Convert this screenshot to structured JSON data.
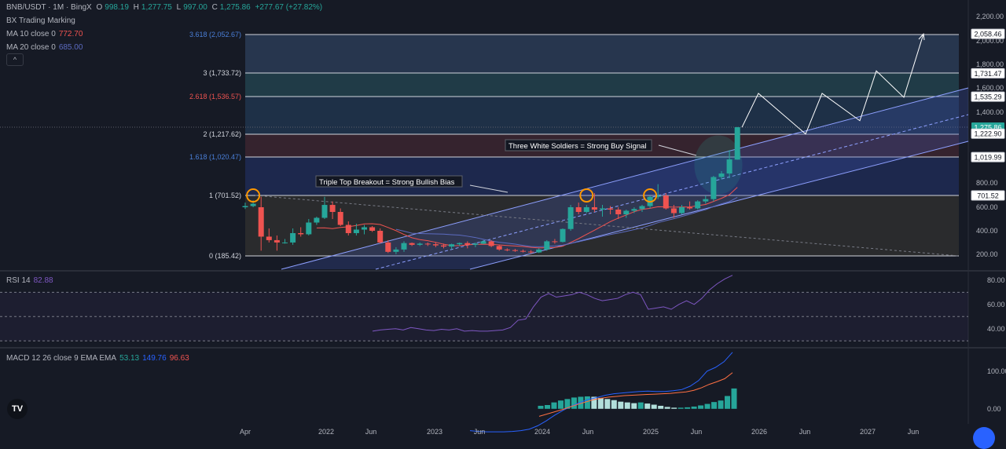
{
  "header": {
    "symbol": "BNB/USDT · 1M · BingX",
    "o_label": "O",
    "o": "998.19",
    "h_label": "H",
    "h": "1,277.75",
    "l_label": "L",
    "l": "997.00",
    "c_label": "C",
    "c": "1,275.86",
    "change": "+277.67 (+27.82%)"
  },
  "indicators": {
    "bx_label": "BX Trading Marking",
    "ma10_label": "MA 10 close 0",
    "ma10_value": "772.70",
    "ma20_label": "MA 20 close 0",
    "ma20_value": "685.00",
    "collapse_glyph": "^",
    "rsi_label": "RSI 14",
    "rsi_value": "82.88",
    "macd_label": "MACD 12 26 close 9 EMA EMA",
    "macd_value": "53.13",
    "macd_signal": "149.76",
    "macd_hist": "96.63"
  },
  "colors": {
    "up": "#26a69a",
    "down": "#ef5350",
    "ma10": "#ef5350",
    "ma20": "#5c6bc0",
    "rsi": "#7e57c2",
    "macd": "#2962ff",
    "signal": "#ff7043",
    "fib_line": "#d1d4dc"
  },
  "chart_data": [
    {
      "type": "candlestick",
      "symbol": "BNB/USDT",
      "interval": "1M",
      "price_axis_ticks": [
        "2,200.00",
        "2,000.00",
        "1,800.00",
        "1,600.00",
        "1,400.00",
        "800.00",
        "600.00",
        "400.00",
        "200.00"
      ],
      "time_axis_ticks": [
        "Apr",
        "2022",
        "Jun",
        "2023",
        "Jun",
        "2024",
        "Jun",
        "2025",
        "Jun",
        "2026",
        "Jun",
        "2027",
        "Jun"
      ],
      "candles": [
        {
          "o": 600,
          "h": 640,
          "l": 585,
          "c": 610
        },
        {
          "o": 610,
          "h": 660,
          "l": 600,
          "c": 630
        },
        {
          "o": 600,
          "h": 690,
          "l": 230,
          "c": 350
        },
        {
          "o": 350,
          "h": 420,
          "l": 300,
          "c": 320
        },
        {
          "o": 320,
          "h": 360,
          "l": 230,
          "c": 300
        },
        {
          "o": 300,
          "h": 330,
          "l": 290,
          "c": 300
        },
        {
          "o": 300,
          "h": 420,
          "l": 280,
          "c": 380
        },
        {
          "o": 380,
          "h": 430,
          "l": 350,
          "c": 370
        },
        {
          "o": 370,
          "h": 500,
          "l": 360,
          "c": 470
        },
        {
          "o": 470,
          "h": 520,
          "l": 450,
          "c": 510
        },
        {
          "o": 510,
          "h": 690,
          "l": 500,
          "c": 620
        },
        {
          "o": 620,
          "h": 650,
          "l": 500,
          "c": 560
        },
        {
          "o": 560,
          "h": 590,
          "l": 440,
          "c": 450
        },
        {
          "o": 450,
          "h": 480,
          "l": 360,
          "c": 380
        },
        {
          "o": 380,
          "h": 460,
          "l": 360,
          "c": 410
        },
        {
          "o": 410,
          "h": 450,
          "l": 370,
          "c": 430
        },
        {
          "o": 430,
          "h": 440,
          "l": 390,
          "c": 400
        },
        {
          "o": 400,
          "h": 420,
          "l": 290,
          "c": 300
        },
        {
          "o": 300,
          "h": 320,
          "l": 210,
          "c": 220
        },
        {
          "o": 220,
          "h": 260,
          "l": 200,
          "c": 240
        },
        {
          "o": 240,
          "h": 310,
          "l": 220,
          "c": 295
        },
        {
          "o": 295,
          "h": 300,
          "l": 270,
          "c": 280
        },
        {
          "o": 280,
          "h": 300,
          "l": 270,
          "c": 290
        },
        {
          "o": 290,
          "h": 300,
          "l": 270,
          "c": 285
        },
        {
          "o": 285,
          "h": 300,
          "l": 260,
          "c": 275
        },
        {
          "o": 275,
          "h": 290,
          "l": 250,
          "c": 265
        },
        {
          "o": 265,
          "h": 290,
          "l": 240,
          "c": 285
        },
        {
          "o": 285,
          "h": 300,
          "l": 270,
          "c": 295
        },
        {
          "o": 295,
          "h": 310,
          "l": 250,
          "c": 280
        },
        {
          "o": 280,
          "h": 300,
          "l": 260,
          "c": 290
        },
        {
          "o": 290,
          "h": 320,
          "l": 285,
          "c": 310
        },
        {
          "o": 310,
          "h": 320,
          "l": 260,
          "c": 270
        },
        {
          "o": 270,
          "h": 280,
          "l": 230,
          "c": 240
        },
        {
          "o": 240,
          "h": 250,
          "l": 225,
          "c": 235
        },
        {
          "o": 235,
          "h": 245,
          "l": 220,
          "c": 228
        },
        {
          "o": 228,
          "h": 240,
          "l": 215,
          "c": 222
        },
        {
          "o": 222,
          "h": 235,
          "l": 205,
          "c": 215
        },
        {
          "o": 215,
          "h": 250,
          "l": 210,
          "c": 240
        },
        {
          "o": 240,
          "h": 320,
          "l": 230,
          "c": 310
        },
        {
          "o": 310,
          "h": 330,
          "l": 290,
          "c": 305
        },
        {
          "o": 305,
          "h": 420,
          "l": 300,
          "c": 415
        },
        {
          "o": 415,
          "h": 620,
          "l": 400,
          "c": 600
        },
        {
          "o": 600,
          "h": 640,
          "l": 540,
          "c": 560
        },
        {
          "o": 560,
          "h": 620,
          "l": 550,
          "c": 600
        },
        {
          "o": 600,
          "h": 720,
          "l": 560,
          "c": 580
        },
        {
          "o": 580,
          "h": 620,
          "l": 520,
          "c": 590
        },
        {
          "o": 590,
          "h": 610,
          "l": 540,
          "c": 580
        },
        {
          "o": 580,
          "h": 600,
          "l": 500,
          "c": 540
        },
        {
          "o": 540,
          "h": 580,
          "l": 510,
          "c": 570
        },
        {
          "o": 570,
          "h": 600,
          "l": 550,
          "c": 585
        },
        {
          "o": 585,
          "h": 620,
          "l": 560,
          "c": 610
        },
        {
          "o": 610,
          "h": 700,
          "l": 590,
          "c": 690
        },
        {
          "o": 690,
          "h": 790,
          "l": 670,
          "c": 700
        },
        {
          "o": 700,
          "h": 720,
          "l": 580,
          "c": 590
        },
        {
          "o": 590,
          "h": 620,
          "l": 510,
          "c": 550
        },
        {
          "o": 550,
          "h": 620,
          "l": 540,
          "c": 600
        },
        {
          "o": 600,
          "h": 650,
          "l": 580,
          "c": 590
        },
        {
          "o": 590,
          "h": 660,
          "l": 580,
          "c": 650
        },
        {
          "o": 650,
          "h": 700,
          "l": 630,
          "c": 670
        },
        {
          "o": 670,
          "h": 860,
          "l": 650,
          "c": 850
        },
        {
          "o": 850,
          "h": 900,
          "l": 830,
          "c": 880
        },
        {
          "o": 880,
          "h": 1080,
          "l": 840,
          "c": 1000
        },
        {
          "o": 998.19,
          "h": 1277.75,
          "l": 997.0,
          "c": 1275.86
        }
      ],
      "fib_levels": [
        {
          "ratio": "0",
          "price": "185.42",
          "label": "0 (185.42)",
          "color": "#d1d4dc"
        },
        {
          "ratio": "1",
          "price": "701.52",
          "label": "1 (701.52)",
          "color": "#d1d4dc"
        },
        {
          "ratio": "1.618",
          "price": "1,020.47",
          "label": "1.618 (1,020.47)",
          "color": "#4a7fd8"
        },
        {
          "ratio": "2",
          "price": "1,217.62",
          "label": "2 (1,217.62)",
          "color": "#d1d4dc"
        },
        {
          "ratio": "2.618",
          "price": "1,536.57",
          "label": "2.618 (1,536.57)",
          "color": "#ef5350"
        },
        {
          "ratio": "3",
          "price": "1,733.72",
          "label": "3 (1,733.72)",
          "color": "#d1d4dc"
        },
        {
          "ratio": "3.618",
          "price": "2,052.67",
          "label": "3.618 (2,052.67)",
          "color": "#4a7fd8"
        }
      ],
      "price_tags": [
        {
          "value": "2,058.46",
          "style": "white"
        },
        {
          "value": "1,731.47",
          "style": "white"
        },
        {
          "value": "1,535.29",
          "style": "white"
        },
        {
          "value": "1,275.86",
          "style": "green"
        },
        {
          "value": "1,222.90",
          "style": "white"
        },
        {
          "value": "1,019.99",
          "style": "white"
        },
        {
          "value": "701.52",
          "style": "white"
        }
      ],
      "annotations": [
        "Three White Soldiers = Strong Buy Signal",
        "Triple Top Breakout = Strong Bullish Bias"
      ],
      "projection_path": [
        1275,
        1560,
        1220,
        1560,
        1330,
        1750,
        1530,
        2058
      ]
    },
    {
      "type": "line",
      "name": "RSI 14",
      "ticks": [
        "80.00",
        "60.00",
        "40.00"
      ],
      "ylim": [
        25,
        87
      ],
      "bands": [
        70,
        50,
        30
      ],
      "values": [
        38,
        39,
        39.5,
        40,
        39,
        41,
        40,
        39,
        38.5,
        39.5,
        39,
        40,
        38,
        38.5,
        38,
        38,
        38.5,
        39,
        41,
        47,
        48,
        58,
        66,
        69,
        66,
        67,
        68,
        70,
        68,
        65,
        63,
        64,
        65,
        68,
        70,
        68,
        56,
        57,
        58,
        56,
        60,
        63,
        60,
        65,
        72,
        77,
        81,
        84
      ]
    },
    {
      "type": "bar+line",
      "name": "MACD 12 26 close 9 EMA EMA",
      "ticks": [
        "100.00",
        "0.00"
      ],
      "ylim": [
        -40,
        160
      ],
      "histogram": [
        8,
        10,
        17,
        22,
        26,
        30,
        32,
        33,
        32,
        29,
        26,
        23,
        19,
        17,
        15,
        17,
        14,
        11,
        8,
        5,
        3,
        3,
        4,
        6,
        9,
        13,
        18,
        22,
        34,
        54
      ],
      "macd": [
        -58,
        -60,
        -61,
        -61,
        -61,
        -60,
        -58,
        -54,
        -45,
        -32,
        -17,
        -4,
        7,
        17,
        25,
        30,
        36,
        40,
        42,
        44,
        46,
        47,
        46,
        46,
        48,
        51,
        60,
        75,
        100,
        110,
        125,
        150
      ],
      "signal": [
        -20,
        -14,
        -8,
        -2,
        5,
        12,
        18,
        24,
        28,
        31,
        33,
        35,
        36,
        37,
        38,
        39,
        40,
        41,
        43,
        45,
        49,
        56,
        65,
        72,
        80,
        96
      ]
    }
  ]
}
